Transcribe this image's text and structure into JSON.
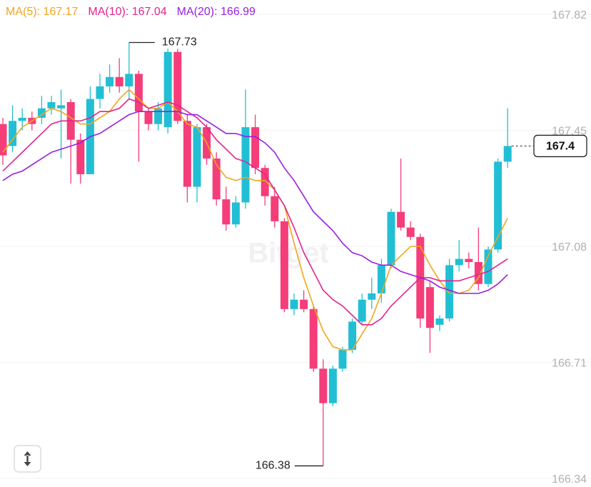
{
  "chart_data": {
    "type": "candlestick",
    "open": [
      167.47,
      167.4,
      167.48,
      167.49,
      167.49,
      167.52,
      167.52,
      167.54,
      167.42,
      167.31,
      167.55,
      167.59,
      167.62,
      167.59,
      167.63,
      167.51,
      167.47,
      167.46,
      167.7,
      167.48,
      167.27,
      167.46,
      167.36,
      167.23,
      167.15,
      167.22,
      167.46,
      167.33,
      167.24,
      167.16,
      166.88,
      166.91,
      166.88,
      166.69,
      166.58,
      166.69,
      166.75,
      166.84,
      166.91,
      166.93,
      167.02,
      167.19,
      167.14,
      167.11,
      166.95,
      166.83,
      166.85,
      167.02,
      167.04,
      167.03,
      166.96,
      167.07,
      167.35
    ],
    "high": [
      167.49,
      167.53,
      167.52,
      167.51,
      167.56,
      167.56,
      167.58,
      167.55,
      167.44,
      167.59,
      167.63,
      167.66,
      167.68,
      167.73,
      167.64,
      167.52,
      167.54,
      167.71,
      167.71,
      167.5,
      167.47,
      167.47,
      167.38,
      167.27,
      167.24,
      167.58,
      167.5,
      167.34,
      167.27,
      167.17,
      166.93,
      166.94,
      166.89,
      166.72,
      166.7,
      166.76,
      166.85,
      166.93,
      166.98,
      167.04,
      167.2,
      167.36,
      167.16,
      167.12,
      166.97,
      166.86,
      167.04,
      167.1,
      167.06,
      167.14,
      167.08,
      167.36,
      167.52
    ],
    "low": [
      167.34,
      167.38,
      167.45,
      167.45,
      167.47,
      167.5,
      167.36,
      167.28,
      167.28,
      167.31,
      167.52,
      167.57,
      167.57,
      167.55,
      167.35,
      167.45,
      167.45,
      167.44,
      167.47,
      167.22,
      167.22,
      167.34,
      167.21,
      167.13,
      167.14,
      167.2,
      167.31,
      167.21,
      167.14,
      166.87,
      166.86,
      166.87,
      166.68,
      166.38,
      166.57,
      166.68,
      166.74,
      166.83,
      166.88,
      166.9,
      167.01,
      167.13,
      167.1,
      166.82,
      166.74,
      166.81,
      166.84,
      167.0,
      167.01,
      166.94,
      166.95,
      167.06,
      167.33
    ],
    "close": [
      167.37,
      167.48,
      167.49,
      167.47,
      167.52,
      167.54,
      167.53,
      167.42,
      167.31,
      167.55,
      167.59,
      167.62,
      167.59,
      167.63,
      167.51,
      167.47,
      167.52,
      167.7,
      167.48,
      167.27,
      167.46,
      167.36,
      167.23,
      167.15,
      167.22,
      167.46,
      167.33,
      167.24,
      167.16,
      166.88,
      166.91,
      166.88,
      166.69,
      166.58,
      166.69,
      166.75,
      166.84,
      166.91,
      166.93,
      167.02,
      167.19,
      167.14,
      167.11,
      166.85,
      166.82,
      166.85,
      167.02,
      167.04,
      167.03,
      166.96,
      167.07,
      167.35,
      167.4
    ],
    "up_color": "#22bfd4",
    "down_color": "#f53d79",
    "series": [
      {
        "name": "MA(5): 167.17",
        "color": "#f0a71e",
        "values": [
          167.38,
          167.42,
          167.46,
          167.48,
          167.5,
          167.52,
          167.51,
          167.49,
          167.47,
          167.47,
          167.49,
          167.51,
          167.55,
          167.58,
          167.55,
          167.52,
          167.52,
          167.54,
          167.51,
          167.47,
          167.46,
          167.41,
          167.34,
          167.3,
          167.29,
          167.3,
          167.29,
          167.29,
          167.26,
          167.21,
          167.09,
          166.98,
          166.89,
          166.81,
          166.76,
          166.75,
          166.75,
          166.8,
          166.85,
          166.93,
          167.02,
          167.05,
          167.08,
          167.08,
          167.02,
          166.97,
          166.93,
          166.93,
          166.94,
          166.98,
          167.05,
          167.11,
          167.17
        ]
      },
      {
        "name": "MA(10): 167.04",
        "color": "#e3238f",
        "values": [
          167.32,
          167.35,
          167.38,
          167.41,
          167.44,
          167.47,
          167.48,
          167.48,
          167.48,
          167.49,
          167.51,
          167.51,
          167.52,
          167.55,
          167.54,
          167.52,
          167.53,
          167.54,
          167.53,
          167.51,
          167.49,
          167.46,
          167.42,
          167.39,
          167.36,
          167.35,
          167.33,
          167.31,
          167.26,
          167.21,
          167.14,
          167.06,
          167.0,
          166.94,
          166.91,
          166.89,
          166.86,
          166.83,
          166.83,
          166.85,
          166.89,
          166.92,
          166.95,
          166.98,
          166.98,
          166.97,
          166.97,
          166.97,
          166.98,
          166.99,
          167.0,
          167.02,
          167.04
        ]
      },
      {
        "name": "MA(20): 166.99",
        "color": "#9a1fe0",
        "values": [
          167.29,
          167.31,
          167.32,
          167.34,
          167.36,
          167.38,
          167.39,
          167.4,
          167.41,
          167.43,
          167.44,
          167.46,
          167.48,
          167.5,
          167.51,
          167.51,
          167.51,
          167.51,
          167.51,
          167.5,
          167.5,
          167.48,
          167.46,
          167.44,
          167.44,
          167.43,
          167.43,
          167.41,
          167.38,
          167.33,
          167.29,
          167.24,
          167.19,
          167.16,
          167.13,
          167.09,
          167.06,
          167.05,
          167.03,
          167.02,
          167.02,
          167.0,
          166.99,
          166.98,
          166.97,
          166.95,
          166.94,
          166.93,
          166.93,
          166.93,
          166.94,
          166.96,
          166.99
        ]
      }
    ],
    "ylim": [
      166.34,
      167.82
    ],
    "yticks": [
      167.82,
      167.45,
      167.08,
      166.71,
      166.34
    ],
    "grid": true,
    "watermark": "Bitget"
  }
}
